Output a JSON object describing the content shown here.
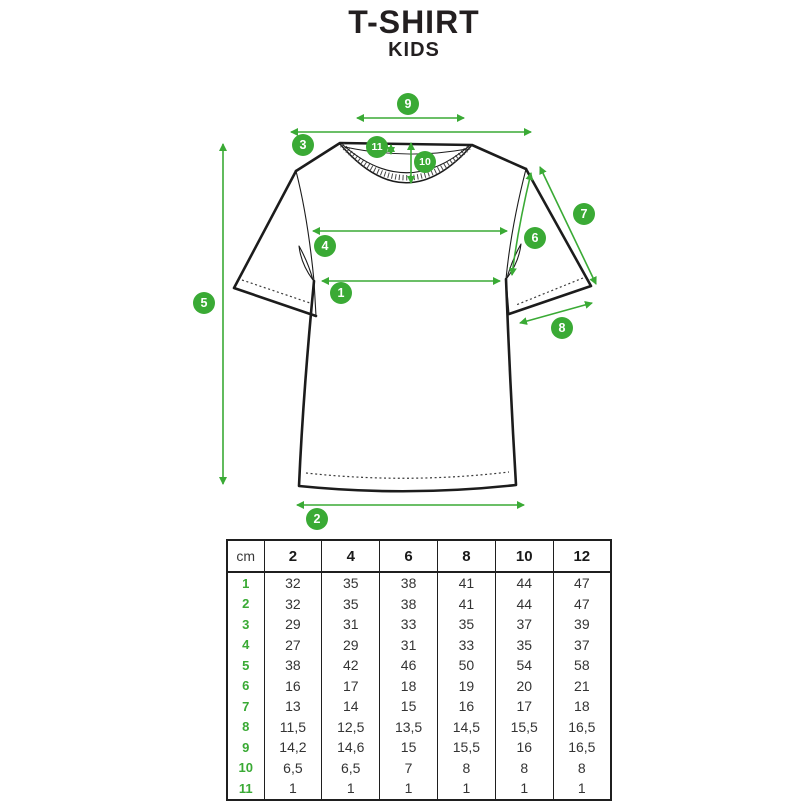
{
  "title": "T-SHIRT",
  "subtitle": "KIDS",
  "colors": {
    "accent_green": "#3aaa35",
    "outline_black": "#1c1c1c"
  },
  "diagram": {
    "markers": [
      "1",
      "2",
      "3",
      "4",
      "5",
      "6",
      "7",
      "8",
      "9",
      "10",
      "11"
    ]
  },
  "table": {
    "unit_label": "cm",
    "size_headers": [
      "2",
      "4",
      "6",
      "8",
      "10",
      "12"
    ],
    "rows": [
      {
        "measure": "1",
        "values": [
          "32",
          "35",
          "38",
          "41",
          "44",
          "47"
        ]
      },
      {
        "measure": "2",
        "values": [
          "32",
          "35",
          "38",
          "41",
          "44",
          "47"
        ]
      },
      {
        "measure": "3",
        "values": [
          "29",
          "31",
          "33",
          "35",
          "37",
          "39"
        ]
      },
      {
        "measure": "4",
        "values": [
          "27",
          "29",
          "31",
          "33",
          "35",
          "37"
        ]
      },
      {
        "measure": "5",
        "values": [
          "38",
          "42",
          "46",
          "50",
          "54",
          "58"
        ]
      },
      {
        "measure": "6",
        "values": [
          "16",
          "17",
          "18",
          "19",
          "20",
          "21"
        ]
      },
      {
        "measure": "7",
        "values": [
          "13",
          "14",
          "15",
          "16",
          "17",
          "18"
        ]
      },
      {
        "measure": "8",
        "values": [
          "11,5",
          "12,5",
          "13,5",
          "14,5",
          "15,5",
          "16,5"
        ]
      },
      {
        "measure": "9",
        "values": [
          "14,2",
          "14,6",
          "15",
          "15,5",
          "16",
          "16,5"
        ]
      },
      {
        "measure": "10",
        "values": [
          "6,5",
          "6,5",
          "7",
          "8",
          "8",
          "8"
        ]
      },
      {
        "measure": "11",
        "values": [
          "1",
          "1",
          "1",
          "1",
          "1",
          "1"
        ]
      }
    ]
  }
}
